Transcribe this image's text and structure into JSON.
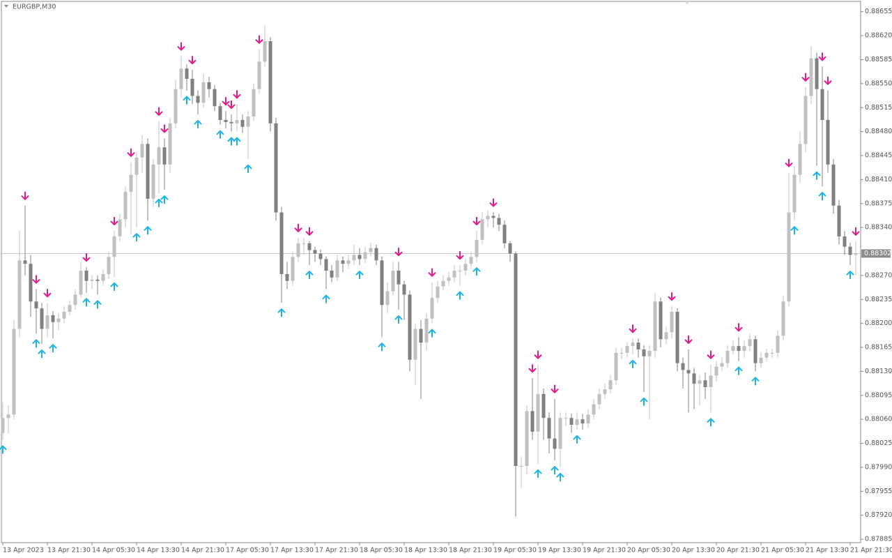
{
  "chart_data": {
    "type": "candlestick",
    "title": "EURGBP,M30",
    "x_labels": [
      "13 Apr 2023",
      "13 Apr 21:30",
      "14 Apr 05:30",
      "14 Apr 13:30",
      "14 Apr 21:30",
      "17 Apr 05:30",
      "17 Apr 13:30",
      "17 Apr 21:30",
      "18 Apr 05:30",
      "18 Apr 13:30",
      "18 Apr 21:30",
      "19 Apr 05:30",
      "19 Apr 13:30",
      "19 Apr 21:30",
      "20 Apr 05:30",
      "20 Apr 13:30",
      "20 Apr 21:30",
      "21 Apr 05:30",
      "21 Apr 13:30",
      "21 Apr 21:30"
    ],
    "ylim": [
      0.8788,
      0.8867
    ],
    "yticks": [
      0.88655,
      {
        "value": 0.8862,
        "label": "0.88620"
      },
      0.88585,
      {
        "value": 0.8855,
        "label": "0.88550"
      },
      0.88515,
      {
        "value": 0.8848,
        "label": "0.88480"
      },
      0.88445,
      {
        "value": 0.8841,
        "label": "0.88410"
      },
      0.88375,
      {
        "value": 0.8834,
        "label": "0.88340"
      },
      {
        "value": 0.8827,
        "label": "0.88270"
      },
      0.88235,
      {
        "value": 0.882,
        "label": "0.88200"
      },
      0.88165,
      {
        "value": 0.8813,
        "label": "0.88130"
      },
      0.88095,
      {
        "value": 0.8806,
        "label": "0.88060"
      },
      0.88025,
      {
        "value": 0.8799,
        "label": "0.87990"
      },
      0.87955,
      {
        "value": 0.8792,
        "label": "0.87920"
      },
      0.87885
    ],
    "current_price": 0.88302,
    "bull_color": "#c0c0c0",
    "bear_color": "#808080",
    "sell_color": "#e8168a",
    "buy_color": "#19b3ea",
    "candles": [
      [
        0.8804,
        0.88085,
        0.8803,
        0.88062
      ],
      [
        0.88062,
        0.8808,
        0.8804,
        0.88067
      ],
      [
        0.88067,
        0.88205,
        0.8806,
        0.88192
      ],
      [
        0.88192,
        0.88335,
        0.8818,
        0.88292
      ],
      [
        0.88292,
        0.88372,
        0.8827,
        0.88287
      ],
      [
        0.88287,
        0.883,
        0.8821,
        0.88232
      ],
      [
        0.88232,
        0.8825,
        0.88185,
        0.88222
      ],
      [
        0.88222,
        0.8823,
        0.8817,
        0.88192
      ],
      [
        0.88192,
        0.8823,
        0.8818,
        0.88212
      ],
      [
        0.88212,
        0.88218,
        0.88178,
        0.88202
      ],
      [
        0.88202,
        0.88215,
        0.8819,
        0.88207
      ],
      [
        0.88207,
        0.88225,
        0.882,
        0.88217
      ],
      [
        0.88217,
        0.88233,
        0.88212,
        0.88227
      ],
      [
        0.88227,
        0.8825,
        0.8822,
        0.88242
      ],
      [
        0.88242,
        0.8829,
        0.88238,
        0.88277
      ],
      [
        0.88277,
        0.88282,
        0.88245,
        0.88262
      ],
      [
        0.88262,
        0.8827,
        0.8825,
        0.88264
      ],
      [
        0.88264,
        0.8827,
        0.88242,
        0.88262
      ],
      [
        0.88262,
        0.88278,
        0.88255,
        0.88272
      ],
      [
        0.88272,
        0.88305,
        0.88265,
        0.88297
      ],
      [
        0.88297,
        0.88335,
        0.88268,
        0.88327
      ],
      [
        0.88327,
        0.8836,
        0.8832,
        0.88352
      ],
      [
        0.88352,
        0.884,
        0.8834,
        0.88392
      ],
      [
        0.88392,
        0.88435,
        0.8833,
        0.88417
      ],
      [
        0.88417,
        0.8845,
        0.8834,
        0.88442
      ],
      [
        0.88442,
        0.88475,
        0.8842,
        0.88462
      ],
      [
        0.88462,
        0.8847,
        0.8835,
        0.88382
      ],
      [
        0.88382,
        0.8844,
        0.8837,
        0.88432
      ],
      [
        0.88432,
        0.88495,
        0.8839,
        0.88457
      ],
      [
        0.88457,
        0.8847,
        0.88395,
        0.88432
      ],
      [
        0.88432,
        0.885,
        0.8842,
        0.88492
      ],
      [
        0.88492,
        0.88555,
        0.88485,
        0.88542
      ],
      [
        0.88542,
        0.8859,
        0.8853,
        0.88572
      ],
      [
        0.88572,
        0.88578,
        0.8854,
        0.88557
      ],
      [
        0.88557,
        0.8857,
        0.8852,
        0.88532
      ],
      [
        0.88532,
        0.8854,
        0.88505,
        0.88522
      ],
      [
        0.88522,
        0.88565,
        0.88515,
        0.88552
      ],
      [
        0.88552,
        0.8856,
        0.8853,
        0.88542
      ],
      [
        0.88542,
        0.88548,
        0.8851,
        0.88517
      ],
      [
        0.88517,
        0.88522,
        0.8849,
        0.88497
      ],
      [
        0.88497,
        0.8851,
        0.88485,
        0.88494
      ],
      [
        0.88494,
        0.88505,
        0.8848,
        0.88492
      ],
      [
        0.88492,
        0.8852,
        0.8848,
        0.88497
      ],
      [
        0.88497,
        0.88505,
        0.88478,
        0.88487
      ],
      [
        0.88487,
        0.8851,
        0.8844,
        0.88502
      ],
      [
        0.88502,
        0.8855,
        0.88495,
        0.88542
      ],
      [
        0.88542,
        0.886,
        0.88535,
        0.88582
      ],
      [
        0.88582,
        0.88635,
        0.88575,
        0.88612
      ],
      [
        0.88612,
        0.88618,
        0.8848,
        0.88492
      ],
      [
        0.88492,
        0.885,
        0.8835,
        0.88362
      ],
      [
        0.88362,
        0.8837,
        0.8823,
        0.88272
      ],
      [
        0.88272,
        0.8829,
        0.8825,
        0.88262
      ],
      [
        0.88262,
        0.88305,
        0.88255,
        0.88297
      ],
      [
        0.88297,
        0.88325,
        0.8829,
        0.88317
      ],
      [
        0.88317,
        0.88325,
        0.883,
        0.88317
      ],
      [
        0.88317,
        0.8832,
        0.88285,
        0.88307
      ],
      [
        0.88307,
        0.88312,
        0.8829,
        0.88302
      ],
      [
        0.88302,
        0.88308,
        0.88285,
        0.88294
      ],
      [
        0.88294,
        0.88298,
        0.8825,
        0.88277
      ],
      [
        0.88277,
        0.88285,
        0.8826,
        0.88267
      ],
      [
        0.88267,
        0.883,
        0.88262,
        0.88292
      ],
      [
        0.88292,
        0.88298,
        0.88275,
        0.88287
      ],
      [
        0.88287,
        0.883,
        0.8828,
        0.88292
      ],
      [
        0.88292,
        0.88315,
        0.88285,
        0.883
      ],
      [
        0.883,
        0.8831,
        0.88285,
        0.88294
      ],
      [
        0.88294,
        0.88312,
        0.88288,
        0.88304
      ],
      [
        0.88304,
        0.88318,
        0.88298,
        0.8831
      ],
      [
        0.8831,
        0.88315,
        0.88285,
        0.88292
      ],
      [
        0.88292,
        0.88298,
        0.8818,
        0.88227
      ],
      [
        0.88227,
        0.8826,
        0.88215,
        0.88247
      ],
      [
        0.88247,
        0.8829,
        0.8824,
        0.88277
      ],
      [
        0.88277,
        0.8829,
        0.8822,
        0.88257
      ],
      [
        0.88257,
        0.88262,
        0.88205,
        0.88242
      ],
      [
        0.88242,
        0.88248,
        0.8813,
        0.88147
      ],
      [
        0.88147,
        0.882,
        0.8811,
        0.88192
      ],
      [
        0.88192,
        0.88205,
        0.8809,
        0.88172
      ],
      [
        0.88172,
        0.88215,
        0.8816,
        0.88207
      ],
      [
        0.88207,
        0.8826,
        0.882,
        0.88237
      ],
      [
        0.88237,
        0.88262,
        0.8823,
        0.88254
      ],
      [
        0.88254,
        0.8827,
        0.88248,
        0.88262
      ],
      [
        0.88262,
        0.88275,
        0.88255,
        0.88267
      ],
      [
        0.88267,
        0.88285,
        0.8826,
        0.88277
      ],
      [
        0.88277,
        0.88285,
        0.88255,
        0.88277
      ],
      [
        0.88277,
        0.88295,
        0.8827,
        0.88287
      ],
      [
        0.88287,
        0.88305,
        0.8828,
        0.88297
      ],
      [
        0.88297,
        0.88335,
        0.8829,
        0.88322
      ],
      [
        0.88322,
        0.88362,
        0.88315,
        0.88352
      ],
      [
        0.88352,
        0.88365,
        0.8834,
        0.88357
      ],
      [
        0.88357,
        0.88362,
        0.8834,
        0.88354
      ],
      [
        0.88354,
        0.8836,
        0.88335,
        0.88344
      ],
      [
        0.88344,
        0.8835,
        0.8831,
        0.88317
      ],
      [
        0.88317,
        0.8832,
        0.8829,
        0.88302
      ],
      [
        0.88302,
        0.88305,
        0.87918,
        0.87992
      ],
      [
        0.87992,
        0.88005,
        0.8796,
        0.87992
      ],
      [
        0.87992,
        0.8808,
        0.8798,
        0.88072
      ],
      [
        0.88072,
        0.8812,
        0.8803,
        0.88042
      ],
      [
        0.88042,
        0.8814,
        0.87995,
        0.88097
      ],
      [
        0.88097,
        0.88105,
        0.8803,
        0.88062
      ],
      [
        0.88062,
        0.8807,
        0.8801,
        0.88032
      ],
      [
        0.88032,
        0.8809,
        0.88,
        0.88017
      ],
      [
        0.88017,
        0.8807,
        0.8799,
        0.88062
      ],
      [
        0.88062,
        0.8807,
        0.8805,
        0.88062
      ],
      [
        0.88062,
        0.88068,
        0.8804,
        0.88052
      ],
      [
        0.88052,
        0.8807,
        0.88045,
        0.8806
      ],
      [
        0.8806,
        0.88068,
        0.88045,
        0.88054
      ],
      [
        0.88054,
        0.88075,
        0.88048,
        0.88067
      ],
      [
        0.88067,
        0.8809,
        0.8806,
        0.88082
      ],
      [
        0.88082,
        0.88105,
        0.88075,
        0.88097
      ],
      [
        0.88097,
        0.88112,
        0.8809,
        0.88104
      ],
      [
        0.88104,
        0.88125,
        0.88098,
        0.88117
      ],
      [
        0.88117,
        0.88165,
        0.8811,
        0.88157
      ],
      [
        0.88157,
        0.88165,
        0.88148,
        0.88157
      ],
      [
        0.88157,
        0.88172,
        0.8815,
        0.88167
      ],
      [
        0.88167,
        0.88178,
        0.88155,
        0.88172
      ],
      [
        0.88172,
        0.88178,
        0.8815,
        0.88162
      ],
      [
        0.88162,
        0.88168,
        0.881,
        0.88152
      ],
      [
        0.88152,
        0.88168,
        0.8806,
        0.8816
      ],
      [
        0.8816,
        0.88245,
        0.8815,
        0.88232
      ],
      [
        0.88232,
        0.88238,
        0.88165,
        0.88177
      ],
      [
        0.88177,
        0.88195,
        0.8817,
        0.88187
      ],
      [
        0.88187,
        0.88225,
        0.88178,
        0.88217
      ],
      [
        0.88217,
        0.88222,
        0.8813,
        0.88142
      ],
      [
        0.88142,
        0.8815,
        0.88105,
        0.88132
      ],
      [
        0.88132,
        0.88162,
        0.8807,
        0.88127
      ],
      [
        0.88127,
        0.88135,
        0.88075,
        0.88112
      ],
      [
        0.88112,
        0.88125,
        0.8808,
        0.88117
      ],
      [
        0.88117,
        0.88128,
        0.8809,
        0.88107
      ],
      [
        0.88107,
        0.8814,
        0.8807,
        0.88124
      ],
      [
        0.88124,
        0.88145,
        0.88115,
        0.88137
      ],
      [
        0.88137,
        0.8815,
        0.8813,
        0.88142
      ],
      [
        0.88142,
        0.88168,
        0.88135,
        0.8816
      ],
      [
        0.8816,
        0.88175,
        0.88155,
        0.88167
      ],
      [
        0.88167,
        0.8818,
        0.88145,
        0.8816
      ],
      [
        0.8816,
        0.88175,
        0.8815,
        0.88167
      ],
      [
        0.88167,
        0.88185,
        0.8816,
        0.88177
      ],
      [
        0.88177,
        0.88182,
        0.8813,
        0.88142
      ],
      [
        0.88142,
        0.88158,
        0.88135,
        0.8815
      ],
      [
        0.8815,
        0.88163,
        0.88145,
        0.88157
      ],
      [
        0.88157,
        0.88163,
        0.8815,
        0.88157
      ],
      [
        0.88157,
        0.8819,
        0.8815,
        0.88182
      ],
      [
        0.88182,
        0.8824,
        0.88175,
        0.88232
      ],
      [
        0.88232,
        0.8842,
        0.88225,
        0.88362
      ],
      [
        0.88362,
        0.8843,
        0.8835,
        0.88417
      ],
      [
        0.88417,
        0.8848,
        0.88405,
        0.88462
      ],
      [
        0.88462,
        0.88545,
        0.8845,
        0.88532
      ],
      [
        0.88532,
        0.88605,
        0.8852,
        0.88587
      ],
      [
        0.88587,
        0.88595,
        0.8843,
        0.88542
      ],
      [
        0.88542,
        0.88575,
        0.884,
        0.88497
      ],
      [
        0.88497,
        0.8854,
        0.8842,
        0.88432
      ],
      [
        0.88432,
        0.8844,
        0.8836,
        0.88372
      ],
      [
        0.88372,
        0.8838,
        0.88315,
        0.88327
      ],
      [
        0.88327,
        0.88335,
        0.883,
        0.88312
      ],
      [
        0.88312,
        0.88318,
        0.88285,
        0.883
      ],
      [
        0.883,
        0.8832,
        0.8827,
        0.88302
      ]
    ],
    "sell_signals": [
      4,
      6,
      8,
      15,
      20,
      23,
      28,
      29,
      32,
      34,
      40,
      41,
      42,
      46,
      53,
      55,
      71,
      77,
      82,
      85,
      88,
      95,
      96,
      99,
      113,
      120,
      123,
      127,
      132,
      141,
      144,
      147,
      148,
      153
    ],
    "buy_signals": [
      0,
      6,
      7,
      9,
      15,
      17,
      20,
      24,
      26,
      28,
      29,
      33,
      35,
      39,
      41,
      42,
      44,
      50,
      55,
      58,
      64,
      68,
      71,
      77,
      82,
      85,
      96,
      99,
      100,
      103,
      113,
      115,
      127,
      132,
      135,
      142,
      146,
      147,
      152
    ]
  }
}
